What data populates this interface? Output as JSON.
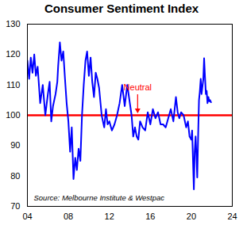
{
  "chart_data": {
    "type": "line",
    "title": "Consumer Sentiment Index",
    "source": "Source: Melbourne Institute & Westpac",
    "annotations": [
      {
        "text": "Neutral",
        "x": 2014.8,
        "y": 100,
        "color": "#ff0000"
      }
    ],
    "reference_lines": [
      {
        "y": 100,
        "color": "#ff0000"
      }
    ],
    "xlim": [
      2004,
      2024
    ],
    "xticks": [
      {
        "value": 2004,
        "label": "04"
      },
      {
        "value": 2008,
        "label": "08"
      },
      {
        "value": 2012,
        "label": "12"
      },
      {
        "value": 2016,
        "label": "16"
      },
      {
        "value": 2020,
        "label": "20"
      },
      {
        "value": 2024,
        "label": "24"
      }
    ],
    "ylim": [
      70,
      130
    ],
    "yticks": [
      70,
      80,
      90,
      100,
      110,
      120,
      130
    ],
    "grid": false,
    "series": [
      {
        "name": "Consumer Sentiment Index",
        "color": "#0000ff",
        "x": [
          2004.0,
          2004.17,
          2004.33,
          2004.5,
          2004.67,
          2004.83,
          2005.0,
          2005.25,
          2005.5,
          2005.75,
          2006.0,
          2006.17,
          2006.33,
          2006.5,
          2006.75,
          2006.92,
          2007.0,
          2007.17,
          2007.33,
          2007.5,
          2007.67,
          2007.83,
          2008.0,
          2008.17,
          2008.33,
          2008.5,
          2008.67,
          2008.83,
          2009.0,
          2009.17,
          2009.33,
          2009.5,
          2009.67,
          2009.83,
          2010.0,
          2010.17,
          2010.33,
          2010.5,
          2010.67,
          2010.83,
          2011.0,
          2011.25,
          2011.5,
          2011.67,
          2011.83,
          2012.0,
          2012.25,
          2012.5,
          2012.75,
          2013.0,
          2013.25,
          2013.5,
          2013.75,
          2014.0,
          2014.17,
          2014.33,
          2014.5,
          2014.67,
          2014.83,
          2015.0,
          2015.25,
          2015.5,
          2015.75,
          2016.0,
          2016.25,
          2016.5,
          2016.75,
          2017.0,
          2017.25,
          2017.5,
          2017.75,
          2018.0,
          2018.25,
          2018.5,
          2018.67,
          2018.83,
          2019.0,
          2019.25,
          2019.5,
          2019.67,
          2019.83,
          2020.0,
          2020.08,
          2020.25,
          2020.33,
          2020.42,
          2020.5,
          2020.58,
          2020.67,
          2020.75,
          2020.83,
          2020.92,
          2021.0,
          2021.17,
          2021.25,
          2021.33,
          2021.42,
          2021.5,
          2021.58,
          2021.67,
          2021.75,
          2021.83,
          2021.92
        ],
        "values": [
          118,
          112,
          119,
          114,
          120,
          113,
          116,
          104,
          110,
          100,
          107,
          111,
          98,
          103,
          107,
          111,
          116,
          124,
          118,
          121,
          112,
          104,
          98,
          88,
          96,
          79,
          86,
          82,
          89,
          85,
          100,
          110,
          118,
          121,
          113,
          119,
          111,
          106,
          114,
          112,
          109,
          100,
          96,
          102,
          97,
          98,
          95,
          97,
          100,
          104,
          110,
          103,
          110,
          104,
          100,
          93,
          96,
          93,
          92,
          98,
          96,
          95,
          101,
          97,
          102,
          99,
          101,
          97,
          97,
          96,
          99,
          102,
          98,
          106,
          101,
          99,
          101,
          100,
          96,
          98,
          93,
          92,
          95,
          75.6,
          88,
          93,
          87,
          79.5,
          93.8,
          105,
          107.7,
          112,
          107,
          111.8,
          118.8,
          113,
          107,
          108,
          104,
          106,
          104.6,
          105,
          104.3
        ]
      }
    ]
  }
}
